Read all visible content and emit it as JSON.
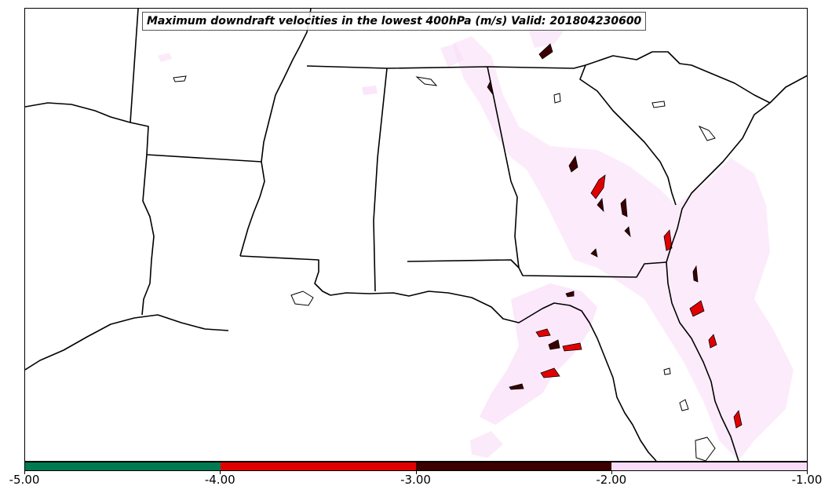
{
  "map": {
    "title": "Maximum downdraft velocities in the lowest 400hPa (m/s) Valid: 201804230600",
    "field": "downdraft-velocity",
    "units": "m/s",
    "region": "Southeastern United States"
  },
  "colorbar": {
    "min": -5.0,
    "max": -1.0,
    "levels": [
      {
        "range": [
          -5.0,
          -4.0
        ],
        "color": "#007a50"
      },
      {
        "range": [
          -4.0,
          -3.0
        ],
        "color": "#e10000"
      },
      {
        "range": [
          -3.0,
          -2.0
        ],
        "color": "#3c0000"
      },
      {
        "range": [
          -2.0,
          -1.0
        ],
        "color": "#f9dcf7"
      }
    ],
    "tick_labels": [
      "-5.00",
      "-4.00",
      "-3.00",
      "-2.00",
      "-1.00"
    ]
  },
  "colors": {
    "weak_downdraft": "#f9dcf7",
    "moderate_downdraft": "#3c0000",
    "strong_downdraft": "#e10000",
    "extreme_downdraft": "#007a50",
    "borders": "#000000"
  }
}
